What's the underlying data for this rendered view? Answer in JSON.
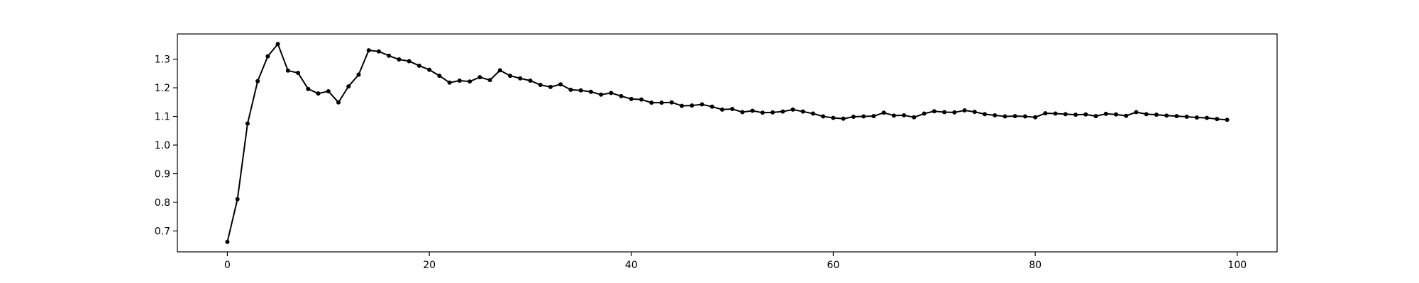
{
  "chart_data": {
    "type": "line",
    "title": "",
    "xlabel": "",
    "ylabel": "",
    "xlim": [
      -4.95,
      103.95
    ],
    "ylim": [
      0.627,
      1.388
    ],
    "x_ticks": [
      0,
      20,
      40,
      60,
      80,
      100
    ],
    "y_ticks": [
      0.7,
      0.8,
      0.9,
      1.0,
      1.1,
      1.2,
      1.3
    ],
    "x_tick_labels": [
      "0",
      "20",
      "40",
      "60",
      "80",
      "100"
    ],
    "y_tick_labels": [
      "0.7",
      "0.8",
      "0.9",
      "1.0",
      "1.1",
      "1.2",
      "1.3"
    ],
    "grid": false,
    "legend": "none",
    "colors": {
      "line": "#000000",
      "axes": "#000000",
      "background": "#ffffff"
    },
    "series": [
      {
        "marker": "dot",
        "x": [
          0,
          1,
          2,
          3,
          4,
          5,
          6,
          7,
          8,
          9,
          10,
          11,
          12,
          13,
          14,
          15,
          16,
          17,
          18,
          19,
          20,
          21,
          22,
          23,
          24,
          25,
          26,
          27,
          28,
          29,
          30,
          31,
          32,
          33,
          34,
          35,
          36,
          37,
          38,
          39,
          40,
          41,
          42,
          43,
          44,
          45,
          46,
          47,
          48,
          49,
          50,
          51,
          52,
          53,
          54,
          55,
          56,
          57,
          58,
          59,
          60,
          61,
          62,
          63,
          64,
          65,
          66,
          67,
          68,
          69,
          70,
          71,
          72,
          73,
          74,
          75,
          76,
          77,
          78,
          79,
          80,
          81,
          82,
          83,
          84,
          85,
          86,
          87,
          88,
          89,
          90,
          91,
          92,
          93,
          94,
          95,
          96,
          97,
          98,
          99
        ],
        "values": [
          0.662,
          0.811,
          1.075,
          1.223,
          1.31,
          1.353,
          1.26,
          1.252,
          1.196,
          1.18,
          1.188,
          1.149,
          1.205,
          1.246,
          1.331,
          1.327,
          1.312,
          1.299,
          1.293,
          1.277,
          1.263,
          1.242,
          1.218,
          1.225,
          1.222,
          1.237,
          1.227,
          1.261,
          1.242,
          1.233,
          1.225,
          1.21,
          1.203,
          1.212,
          1.193,
          1.191,
          1.186,
          1.176,
          1.182,
          1.171,
          1.161,
          1.159,
          1.148,
          1.148,
          1.149,
          1.137,
          1.138,
          1.142,
          1.134,
          1.124,
          1.126,
          1.115,
          1.12,
          1.113,
          1.114,
          1.117,
          1.124,
          1.117,
          1.11,
          1.1,
          1.095,
          1.092,
          1.099,
          1.1,
          1.101,
          1.113,
          1.103,
          1.104,
          1.097,
          1.11,
          1.118,
          1.115,
          1.114,
          1.121,
          1.116,
          1.108,
          1.104,
          1.1,
          1.101,
          1.1,
          1.097,
          1.111,
          1.11,
          1.108,
          1.106,
          1.107,
          1.101,
          1.109,
          1.107,
          1.102,
          1.115,
          1.108,
          1.106,
          1.103,
          1.101,
          1.099,
          1.096,
          1.095,
          1.091,
          1.088
        ]
      }
    ]
  }
}
